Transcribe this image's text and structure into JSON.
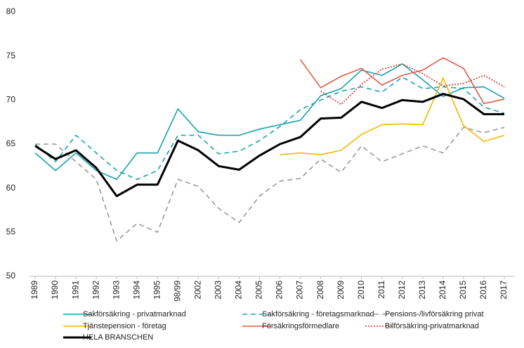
{
  "chart_data": {
    "type": "line",
    "categories": [
      "1989",
      "1990",
      "1991",
      "1992",
      "1993",
      "1994",
      "1995",
      "98/99",
      "2002",
      "2003",
      "2004",
      "2005",
      "2006",
      "2007",
      "2008",
      "2009",
      "2010",
      "2011",
      "2012",
      "2013",
      "2014",
      "2015",
      "2016",
      "2017"
    ],
    "ylim": [
      50,
      80
    ],
    "yticks": [
      50,
      55,
      60,
      65,
      70,
      75,
      80
    ],
    "grid": false,
    "series": [
      {
        "name": "Sakförsäkring - privatmarknad",
        "color": "#1aa3ad",
        "style": "solid",
        "values": [
          64,
          62,
          64,
          62,
          61,
          64,
          64,
          69,
          66.4,
          66,
          66,
          66.7,
          67.2,
          67.7,
          70.5,
          71.3,
          73.4,
          72.8,
          74.1,
          72.3,
          70.4,
          71.4,
          71.5,
          70.2
        ]
      },
      {
        "name": "Sakförsäkring - företagsmarknad",
        "color": "#1aa3ad",
        "style": "dashed",
        "values": [
          65,
          63,
          66,
          64,
          62,
          61,
          62,
          66,
          66,
          63.9,
          64.2,
          65.4,
          67,
          68.9,
          70,
          71,
          71.5,
          70.9,
          72.6,
          71.3,
          71.5,
          71.3,
          69.2,
          68.5
        ]
      },
      {
        "name": "Pensions-/livförsäkring  privat",
        "color": "#999999",
        "style": "dashed",
        "values": [
          65,
          65,
          63,
          61,
          54,
          56,
          55,
          61,
          60.2,
          57.7,
          56.1,
          59.1,
          60.8,
          61.1,
          63.3,
          61.8,
          64.8,
          63,
          63.9,
          64.8,
          64,
          66.9,
          66.3,
          66.9
        ]
      },
      {
        "name": "Tjänstepension - företag",
        "color": "#f2b705",
        "style": "solid",
        "values": [
          null,
          null,
          null,
          null,
          null,
          null,
          null,
          null,
          null,
          null,
          null,
          null,
          63.8,
          64,
          63.8,
          64.3,
          66.1,
          67.2,
          67.3,
          67.2,
          72.5,
          67.1,
          65.3,
          66
        ]
      },
      {
        "name": "Försäkringsförmedlare",
        "color": "#e05a47",
        "style": "solid",
        "values": [
          null,
          null,
          null,
          null,
          null,
          null,
          null,
          null,
          null,
          null,
          null,
          null,
          null,
          74.6,
          71.4,
          72.7,
          73.6,
          71.7,
          72.8,
          73.4,
          74.8,
          73.6,
          69.6,
          70.1
        ]
      },
      {
        "name": "Bilförsäkring-privatmarknad",
        "color": "#d9362a",
        "style": "dotted",
        "values": [
          null,
          null,
          null,
          null,
          null,
          null,
          null,
          null,
          null,
          null,
          null,
          null,
          null,
          null,
          71,
          69.5,
          71.8,
          73.5,
          74.1,
          73,
          71.6,
          71.9,
          72.8,
          71.5
        ]
      },
      {
        "name": "HELA BRANSCHEN",
        "color": "#000000",
        "style": "bold",
        "values": [
          64.8,
          63.3,
          64.3,
          62.3,
          59.1,
          60.4,
          60.4,
          65.4,
          64.3,
          62.5,
          62.1,
          63.7,
          65,
          65.8,
          67.9,
          68,
          69.8,
          69.1,
          70,
          69.8,
          70.7,
          70.1,
          68.4,
          68.4
        ]
      }
    ]
  }
}
